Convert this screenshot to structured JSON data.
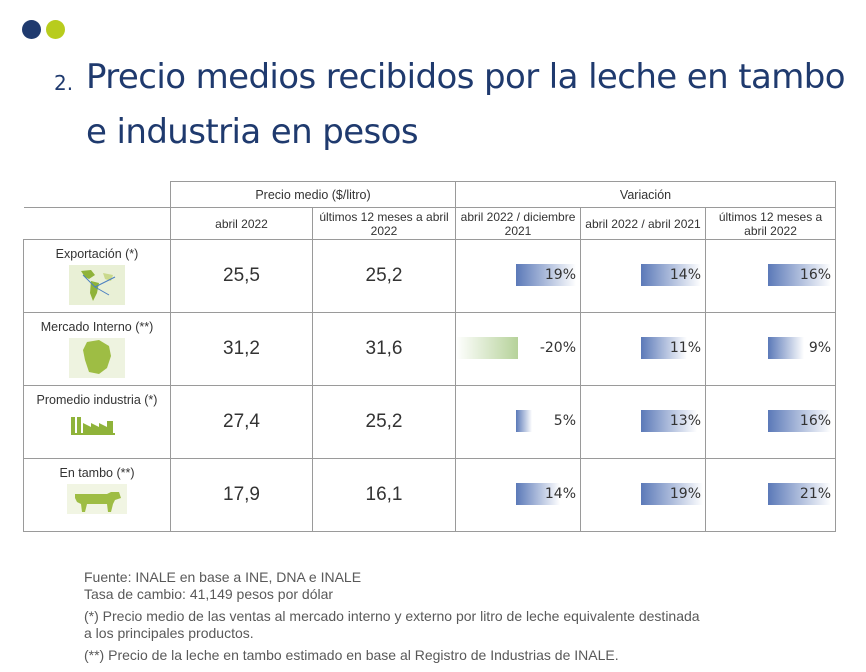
{
  "slide": {
    "number": "2.",
    "title": "Precio medios recibidos por la leche en tambo e industria en pesos"
  },
  "table": {
    "group_headers": [
      "Precio medio ($/litro)",
      "Variación"
    ],
    "sub_headers": [
      "abril 2022",
      "últimos 12 meses a abril 2022",
      "abril 2022 / diciembre 2021",
      "abril 2022 / abril 2021",
      "últimos 12 meses a abril 2022"
    ],
    "rows": [
      {
        "label": "Exportación (*)",
        "icon": "world-map-icon",
        "price_apr": "25,5",
        "price_12m": "25,2",
        "var_dec": "19%",
        "var_apr": "14%",
        "var_12m": "16%",
        "var_values": [
          19,
          14,
          16
        ]
      },
      {
        "label": "Mercado Interno (**)",
        "icon": "uruguay-map-icon",
        "price_apr": "31,2",
        "price_12m": "31,6",
        "var_dec": "-20%",
        "var_apr": "11%",
        "var_12m": "9%",
        "var_values": [
          -20,
          11,
          9
        ]
      },
      {
        "label": "Promedio industria (*)",
        "icon": "factory-icon",
        "price_apr": "27,4",
        "price_12m": "25,2",
        "var_dec": "5%",
        "var_apr": "13%",
        "var_12m": "16%",
        "var_values": [
          5,
          13,
          16
        ]
      },
      {
        "label": "En tambo (**)",
        "icon": "cow-icon",
        "price_apr": "17,9",
        "price_12m": "16,1",
        "var_dec": "14%",
        "var_apr": "19%",
        "var_12m": "21%",
        "var_values": [
          14,
          19,
          21
        ]
      }
    ]
  },
  "notes": [
    "Fuente: INALE en base a INE, DNA e INALE",
    "Tasa de cambio: 41,149 pesos por dólar",
    "(*) Precio medio de las ventas al mercado interno y externo por litro de leche equivalente destinada",
    "a los principales productos.",
    "(**) Precio de la leche en tambo estimado en base al Registro de Industrias de INALE."
  ],
  "colors": {
    "navy": "#1f3a6e",
    "lime": "#b8cc1d",
    "price_blue": "#1a6ea8",
    "bar_blue": "#5b79b8",
    "bar_green": "#b6d29a"
  }
}
